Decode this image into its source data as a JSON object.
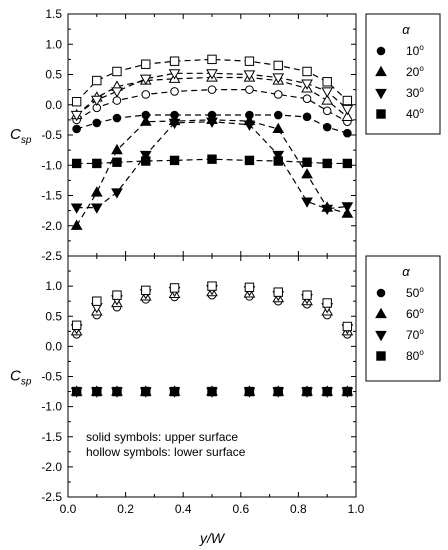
{
  "chart_data": [
    {
      "type": "scatter",
      "panel": "top",
      "xlim": [
        0.0,
        1.0
      ],
      "ylim": [
        -2.5,
        1.5
      ],
      "xticks": [
        "0.0",
        "0.2",
        "0.4",
        "0.6",
        "0.8",
        "1.0"
      ],
      "yticks": [
        "1.5",
        "1.0",
        "0.5",
        "0.0",
        "-0.5",
        "-1.0",
        "-1.5",
        "-2.0",
        "-2.5"
      ],
      "ylabel": "C",
      "ylabel_sub": "sp",
      "grid": false,
      "legend_title": "α",
      "legend_position": "right",
      "x": [
        0.03,
        0.1,
        0.17,
        0.27,
        0.37,
        0.5,
        0.63,
        0.73,
        0.83,
        0.9,
        0.97
      ],
      "series": [
        {
          "name": "10°",
          "legend": "10",
          "marker": "circle",
          "surface": "upper",
          "dashed": true,
          "values": [
            -0.4,
            -0.3,
            -0.22,
            -0.17,
            -0.17,
            -0.17,
            -0.17,
            -0.17,
            -0.2,
            -0.37,
            -0.47
          ]
        },
        {
          "name": "20°",
          "legend": "20",
          "marker": "triangle-up",
          "surface": "upper",
          "dashed": true,
          "values": [
            -2.0,
            -1.45,
            -0.75,
            -0.28,
            -0.27,
            -0.25,
            -0.27,
            -0.4,
            -1.15,
            -1.7,
            -1.8
          ]
        },
        {
          "name": "30°",
          "legend": "30",
          "marker": "triangle-down",
          "surface": "upper",
          "dashed": true,
          "values": [
            -1.7,
            -1.7,
            -1.45,
            -0.83,
            -0.3,
            -0.28,
            -0.33,
            -0.83,
            -1.6,
            -1.72,
            -1.68
          ]
        },
        {
          "name": "40°",
          "legend": "40",
          "marker": "square",
          "surface": "upper",
          "dashed": true,
          "values": [
            -0.97,
            -0.97,
            -0.95,
            -0.93,
            -0.92,
            -0.9,
            -0.92,
            -0.93,
            -0.95,
            -0.97,
            -0.97
          ]
        },
        {
          "marker": "circle",
          "surface": "lower",
          "dashed": true,
          "values": [
            -0.25,
            -0.05,
            0.07,
            0.17,
            0.22,
            0.25,
            0.25,
            0.17,
            0.1,
            -0.1,
            -0.28
          ]
        },
        {
          "marker": "triangle-up",
          "surface": "lower",
          "dashed": true,
          "values": [
            -0.17,
            0.12,
            0.3,
            0.4,
            0.43,
            0.45,
            0.45,
            0.4,
            0.27,
            0.07,
            -0.2
          ]
        },
        {
          "marker": "triangle-down",
          "surface": "lower",
          "dashed": true,
          "values": [
            -0.17,
            0.08,
            0.22,
            0.43,
            0.52,
            0.52,
            0.5,
            0.45,
            0.35,
            0.22,
            -0.07
          ]
        },
        {
          "marker": "square",
          "surface": "lower",
          "dashed": true,
          "values": [
            0.05,
            0.4,
            0.55,
            0.67,
            0.72,
            0.75,
            0.72,
            0.65,
            0.55,
            0.38,
            0.07
          ]
        }
      ]
    },
    {
      "type": "scatter",
      "panel": "bottom",
      "xlim": [
        0.0,
        1.0
      ],
      "ylim": [
        -2.5,
        1.5
      ],
      "xticks": [
        "0.0",
        "0.2",
        "0.4",
        "0.6",
        "0.8",
        "1.0"
      ],
      "yticks": [
        "1.5",
        "1.0",
        "0.5",
        "0.0",
        "-0.5",
        "-1.0",
        "-1.5",
        "-2.0",
        "-2.5"
      ],
      "xlabel": "y/W",
      "ylabel": "C",
      "ylabel_sub": "sp",
      "grid": false,
      "legend_title": "α",
      "legend_position": "right",
      "annotation": [
        "solid symbols: upper surface",
        "hollow symbols: lower surface"
      ],
      "x": [
        0.03,
        0.1,
        0.17,
        0.27,
        0.37,
        0.5,
        0.63,
        0.73,
        0.83,
        0.9,
        0.97
      ],
      "series": [
        {
          "name": "50°",
          "legend": "50",
          "marker": "circle",
          "surface": "upper",
          "dashed": false,
          "values": [
            -0.75,
            -0.75,
            -0.75,
            -0.75,
            -0.75,
            -0.75,
            -0.75,
            -0.75,
            -0.75,
            -0.75,
            -0.75
          ]
        },
        {
          "name": "60°",
          "legend": "60",
          "marker": "triangle-up",
          "surface": "upper",
          "dashed": false,
          "values": [
            -0.75,
            -0.75,
            -0.75,
            -0.75,
            -0.75,
            -0.75,
            -0.75,
            -0.75,
            -0.75,
            -0.75,
            -0.75
          ]
        },
        {
          "name": "70°",
          "legend": "70",
          "marker": "triangle-down",
          "surface": "upper",
          "dashed": false,
          "values": [
            -0.75,
            -0.75,
            -0.75,
            -0.75,
            -0.75,
            -0.75,
            -0.75,
            -0.75,
            -0.75,
            -0.75,
            -0.75
          ]
        },
        {
          "name": "80°",
          "legend": "80",
          "marker": "square",
          "surface": "upper",
          "dashed": false,
          "values": [
            -0.75,
            -0.75,
            -0.75,
            -0.75,
            -0.75,
            -0.75,
            -0.75,
            -0.75,
            -0.75,
            -0.75,
            -0.75
          ]
        },
        {
          "marker": "circle",
          "surface": "lower",
          "dashed": false,
          "values": [
            0.2,
            0.52,
            0.65,
            0.78,
            0.82,
            0.85,
            0.83,
            0.75,
            0.7,
            0.52,
            0.2
          ]
        },
        {
          "marker": "triangle-up",
          "surface": "lower",
          "dashed": false,
          "values": [
            0.25,
            0.58,
            0.72,
            0.83,
            0.87,
            0.9,
            0.88,
            0.8,
            0.75,
            0.58,
            0.25
          ]
        },
        {
          "marker": "triangle-down",
          "surface": "lower",
          "dashed": false,
          "values": [
            0.3,
            0.65,
            0.78,
            0.88,
            0.92,
            0.95,
            0.93,
            0.85,
            0.8,
            0.65,
            0.3
          ]
        },
        {
          "marker": "square",
          "surface": "lower",
          "dashed": false,
          "values": [
            0.35,
            0.75,
            0.85,
            0.93,
            0.97,
            1.0,
            0.98,
            0.9,
            0.85,
            0.72,
            0.33
          ]
        }
      ]
    }
  ]
}
